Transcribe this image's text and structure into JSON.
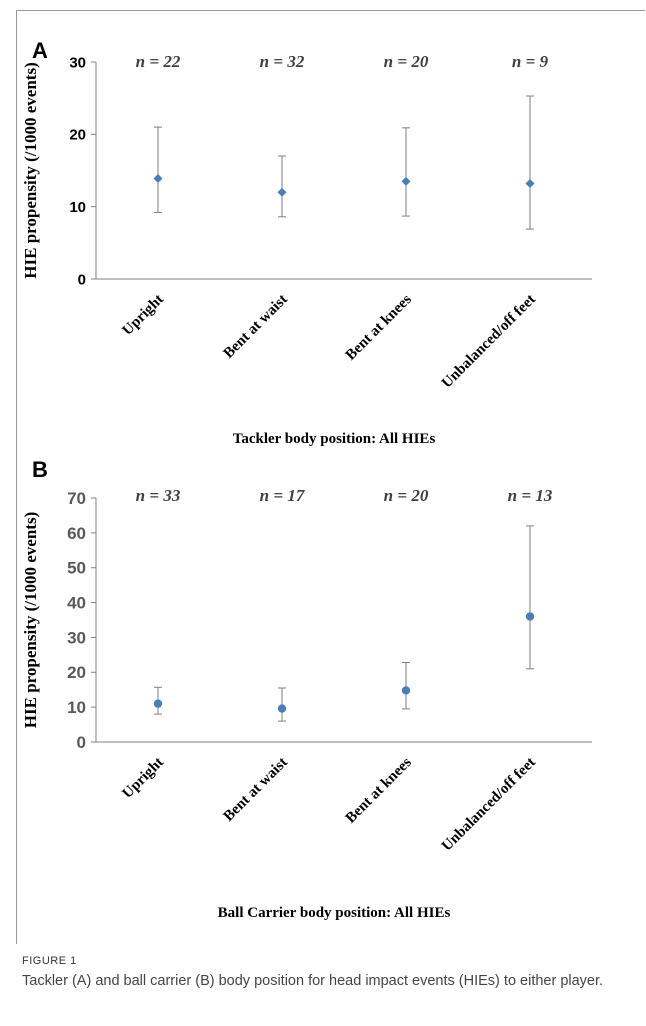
{
  "chart_data": [
    {
      "type": "scatter",
      "panel_label": "A",
      "xlabel": "Tackler body position: All HIEs",
      "ylabel": "HIE propensity (/1000 events)",
      "ylim": [
        0,
        30
      ],
      "yticks": [
        0,
        10,
        20,
        30
      ],
      "categories": [
        "Upright",
        "Bent at waist",
        "Bent at knees",
        "Unbalanced/off feet"
      ],
      "counts": [
        "n = 22",
        "n = 32",
        "n = 20",
        "n = 9"
      ],
      "values": [
        13.9,
        12.0,
        13.5,
        13.2
      ],
      "lower": [
        9.2,
        8.6,
        8.7,
        6.9
      ],
      "upper": [
        21.0,
        17.0,
        20.9,
        25.3
      ],
      "marker": "diamond",
      "color": "#4a7ebb",
      "errorbar_color": "#7f7f7f"
    },
    {
      "type": "scatter",
      "panel_label": "B",
      "xlabel": "Ball Carrier body position: All HIEs",
      "ylabel": "HIE propensity (/1000 events)",
      "ylim": [
        0,
        70
      ],
      "yticks": [
        0,
        10,
        20,
        30,
        40,
        50,
        60,
        70
      ],
      "categories": [
        "Upright",
        "Bent at waist",
        "Bent at knees",
        "Unbalanced/off feet"
      ],
      "counts": [
        "n = 33",
        "n = 17",
        "n = 20",
        "n = 13"
      ],
      "values": [
        11.0,
        9.6,
        14.8,
        36.0
      ],
      "lower": [
        8.0,
        6.0,
        9.5,
        21.0
      ],
      "upper": [
        15.7,
        15.5,
        22.8,
        62.0
      ],
      "marker": "circle",
      "color": "#4a7ebb",
      "errorbar_color": "#7f7f7f"
    }
  ],
  "caption": {
    "label": "FIGURE 1",
    "text": "Tackler (A) and ball carrier (B) body position for head impact events (HIEs) to either player."
  }
}
